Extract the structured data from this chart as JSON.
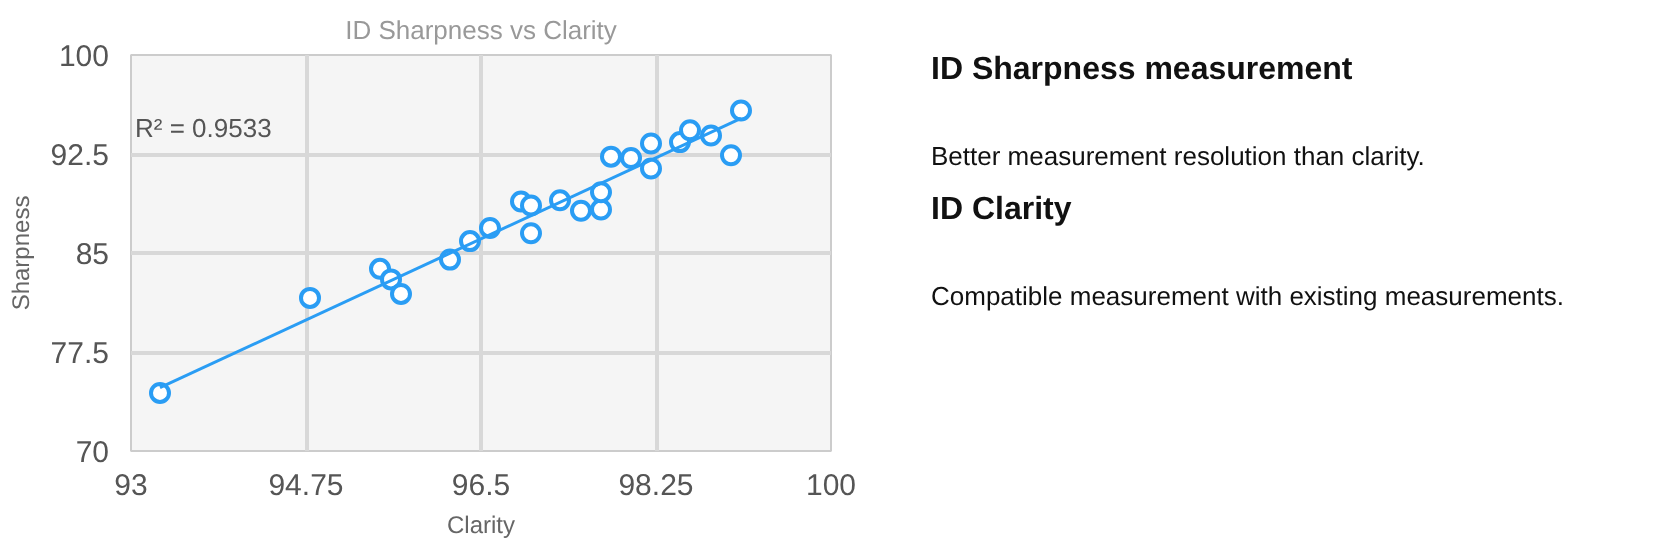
{
  "chart_data": [
    {
      "type": "scatter",
      "title": "ID Sharpness vs Clarity",
      "xlabel": "Clarity",
      "ylabel": "Sharpness",
      "xlim": [
        93,
        100
      ],
      "xticks": [
        93,
        94.75,
        96.5,
        98.25,
        100
      ],
      "ylim": [
        70,
        100
      ],
      "yticks": [
        70,
        77.5,
        85,
        92.5,
        100
      ],
      "grid": true,
      "annotations": [
        "R² = 0.9533"
      ],
      "series": [
        {
          "color": "#2a9df4",
          "marker": "circle",
          "x": [
            93.29,
            94.79,
            95.49,
            95.6,
            95.7,
            96.19,
            96.39,
            96.59,
            96.9,
            97.0,
            97.0,
            97.29,
            97.5,
            97.7,
            97.7,
            97.8,
            98.0,
            98.2,
            98.2,
            98.49,
            98.59,
            98.8,
            99.0,
            99.1
          ],
          "values": [
            74.4,
            81.6,
            83.8,
            83.0,
            81.9,
            84.5,
            85.9,
            86.9,
            88.9,
            88.6,
            86.5,
            89.0,
            88.2,
            88.3,
            89.6,
            92.3,
            92.2,
            93.3,
            91.4,
            93.4,
            94.3,
            93.9,
            92.4,
            95.8
          ]
        },
        {
          "type": "line",
          "marker": "none",
          "color": "#2a9df4",
          "x": [
            93.29,
            99.1
          ],
          "values": [
            74.8,
            95.2
          ]
        }
      ]
    },
    {
      "type": "other",
      "title": "ID Sharpness measurement",
      "annotations": [
        "Better measurement resolution than clarity.",
        "ID Clarity",
        "Compatible measurement with existing measurements."
      ]
    }
  ]
}
